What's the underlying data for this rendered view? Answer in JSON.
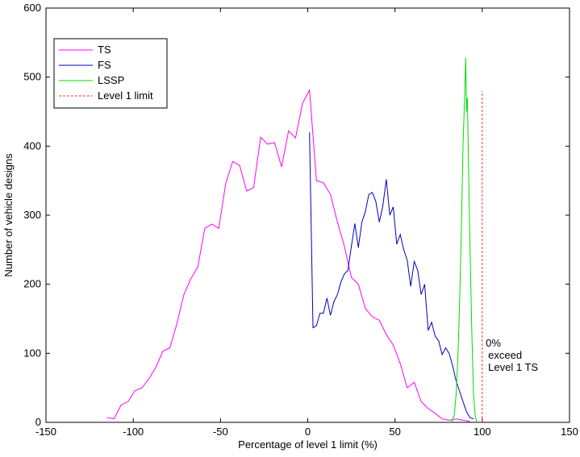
{
  "chart_data": {
    "type": "line",
    "title": "",
    "xlabel": "Percentage of level 1 limit (%)",
    "ylabel": "Number of vehicle designs",
    "xlim": [
      -150,
      150
    ],
    "ylim": [
      0,
      600
    ],
    "xticks": [
      -150,
      -100,
      -50,
      0,
      50,
      100,
      150
    ],
    "yticks": [
      0,
      100,
      200,
      300,
      400,
      500,
      600
    ],
    "grid": false,
    "legend_position": "top-left",
    "annotation": [
      "0%",
      "exceed",
      "Level 1 TS"
    ],
    "annotation_at": {
      "x": 102,
      "y": 110
    },
    "series": [
      {
        "name": "TS",
        "color": "#ff00ff",
        "style": "solid",
        "x": [
          -115,
          -111,
          -107,
          -103,
          -99,
          -95,
          -91,
          -87,
          -83,
          -79,
          -75,
          -71,
          -67,
          -63,
          -59,
          -55,
          -51,
          -47,
          -43,
          -39,
          -35,
          -31,
          -27,
          -23,
          -19,
          -15,
          -11,
          -7,
          -3,
          1,
          5,
          9,
          13,
          17,
          21,
          25,
          29,
          33,
          37,
          41,
          45,
          49,
          53,
          57,
          61,
          65,
          69,
          73,
          77,
          81,
          85,
          89,
          93
        ],
        "y": [
          7,
          5,
          25,
          30,
          46,
          50,
          63,
          80,
          103,
          108,
          143,
          185,
          208,
          225,
          281,
          287,
          281,
          346,
          378,
          372,
          335,
          340,
          413,
          403,
          405,
          370,
          422,
          412,
          462,
          481,
          350,
          347,
          330,
          290,
          255,
          210,
          200,
          165,
          153,
          148,
          127,
          112,
          85,
          50,
          58,
          30,
          20,
          13,
          5,
          3,
          5,
          3,
          1
        ]
      },
      {
        "name": "FS",
        "color": "#0000c0",
        "style": "solid",
        "x": [
          1,
          3,
          5,
          7,
          9,
          11,
          13,
          15,
          17,
          19,
          21,
          23,
          25,
          27,
          29,
          31,
          33,
          35,
          37,
          39,
          41,
          43,
          45,
          47,
          49,
          51,
          53,
          55,
          57,
          59,
          61,
          63,
          65,
          67,
          69,
          71,
          73,
          75,
          77,
          79,
          81,
          83,
          85,
          87,
          89,
          91,
          93,
          95
        ],
        "y": [
          420,
          137,
          140,
          158,
          158,
          180,
          155,
          175,
          185,
          203,
          215,
          220,
          255,
          288,
          253,
          290,
          305,
          330,
          333,
          320,
          290,
          313,
          352,
          300,
          312,
          258,
          272,
          250,
          235,
          197,
          233,
          220,
          185,
          200,
          133,
          145,
          125,
          118,
          98,
          108,
          100,
          82,
          60,
          45,
          30,
          15,
          7,
          5
        ]
      },
      {
        "name": "LSSP",
        "color": "#00dd00",
        "style": "solid",
        "x": [
          82,
          83,
          84,
          85,
          86,
          87,
          88,
          89,
          90,
          90.5,
          91,
          91.5,
          92,
          93,
          94,
          95,
          96,
          97
        ],
        "y": [
          0,
          3,
          12,
          40,
          90,
          170,
          280,
          400,
          480,
          528,
          450,
          470,
          390,
          250,
          130,
          40,
          8,
          0
        ]
      },
      {
        "name": "Level 1 limit",
        "color": "#ff3030",
        "style": "dashed",
        "x": [
          100,
          100
        ],
        "y": [
          0,
          480
        ]
      }
    ]
  }
}
